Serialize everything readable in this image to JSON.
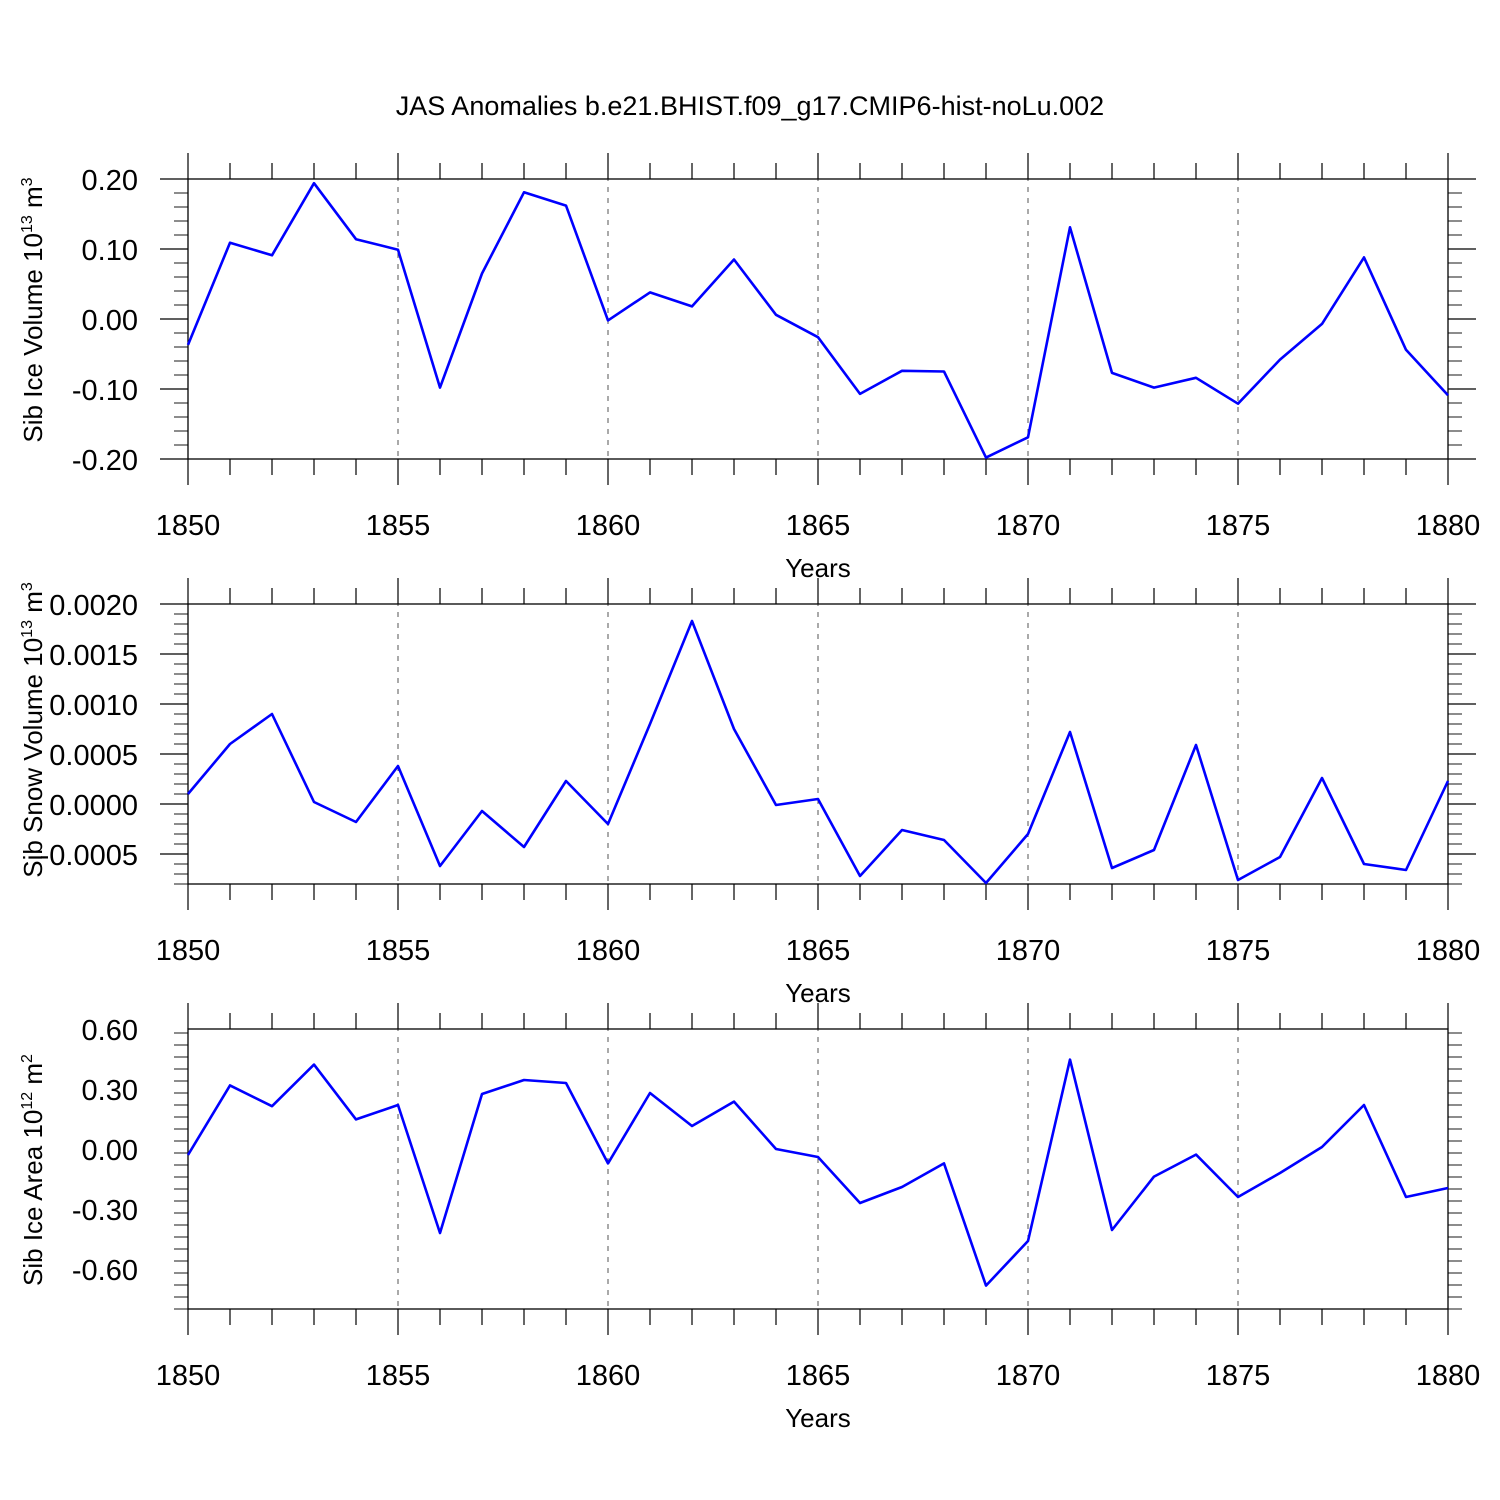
{
  "figure": {
    "title": "JAS Anomalies b.e21.BHIST.f09_g17.CMIP6-hist-noLu.002"
  },
  "chart_data": [
    {
      "type": "line",
      "ylabel": "Sib Ice Volume 10",
      "ylabel_sup": "13",
      "ylabel_unit": " m",
      "ylabel_unit_sup": "3",
      "xlabel": "Years",
      "xlim": [
        1850,
        1880
      ],
      "ylim": [
        -0.2,
        0.2
      ],
      "yticks": [
        "0.20",
        "0.10",
        "0.00",
        "-0.10",
        "-0.20"
      ],
      "ytick_values": [
        0.2,
        0.1,
        0.0,
        -0.1,
        -0.2
      ],
      "xticks": [
        "1850",
        "1855",
        "1860",
        "1865",
        "1870",
        "1875",
        "1880"
      ],
      "xtick_values": [
        1850,
        1855,
        1860,
        1865,
        1870,
        1875,
        1880
      ],
      "grid": "vertical dashed at labeled years",
      "color": "#0000ff",
      "x": [
        1850,
        1851,
        1852,
        1853,
        1854,
        1855,
        1856,
        1857,
        1858,
        1859,
        1860,
        1861,
        1862,
        1863,
        1864,
        1865,
        1866,
        1867,
        1868,
        1869,
        1870,
        1871,
        1872,
        1873,
        1874,
        1875,
        1876,
        1877,
        1878,
        1879,
        1880
      ],
      "values": [
        -0.037,
        0.109,
        0.091,
        0.194,
        0.114,
        0.099,
        -0.098,
        0.065,
        0.181,
        0.162,
        -0.002,
        0.038,
        0.018,
        0.085,
        0.006,
        -0.026,
        -0.107,
        -0.074,
        -0.075,
        -0.198,
        -0.169,
        0.131,
        -0.077,
        -0.098,
        -0.084,
        -0.121,
        -0.058,
        -0.007,
        0.088,
        -0.044,
        -0.109
      ]
    },
    {
      "type": "line",
      "ylabel": "Sib Snow Volume 10",
      "ylabel_sup": "13",
      "ylabel_unit": " m",
      "ylabel_unit_sup": "3",
      "xlabel": "Years",
      "xlim": [
        1850,
        1880
      ],
      "ylim": [
        -0.0008,
        0.002
      ],
      "yticks": [
        "0.0020",
        "0.0015",
        "0.0010",
        "0.0005",
        "0.0000",
        "-0.0005"
      ],
      "ytick_values": [
        0.002,
        0.0015,
        0.001,
        0.0005,
        0.0,
        -0.0005
      ],
      "xticks": [
        "1850",
        "1855",
        "1860",
        "1865",
        "1870",
        "1875",
        "1880"
      ],
      "xtick_values": [
        1850,
        1855,
        1860,
        1865,
        1870,
        1875,
        1880
      ],
      "grid": "vertical dashed at labeled years",
      "color": "#0000ff",
      "x": [
        1850,
        1851,
        1852,
        1853,
        1854,
        1855,
        1856,
        1857,
        1858,
        1859,
        1860,
        1861,
        1862,
        1863,
        1864,
        1865,
        1866,
        1867,
        1868,
        1869,
        1870,
        1871,
        1872,
        1873,
        1874,
        1875,
        1876,
        1877,
        1878,
        1879,
        1880
      ],
      "values": [
        0.0001,
        0.0006,
        0.0009,
        2e-05,
        -0.00018,
        0.00038,
        -0.00062,
        -7e-05,
        -0.00043,
        0.00023,
        -0.0002,
        0.0008,
        0.00183,
        0.00075,
        -1e-05,
        5e-05,
        -0.00072,
        -0.00026,
        -0.00036,
        -0.00079,
        -0.0003,
        0.00072,
        -0.00064,
        -0.00046,
        0.00059,
        -0.00076,
        -0.00053,
        0.00026,
        -0.0006,
        -0.00066,
        0.00023
      ]
    },
    {
      "type": "line",
      "ylabel": "Sib Ice Area 10",
      "ylabel_sup": "12",
      "ylabel_unit": " m",
      "ylabel_unit_sup": "2",
      "xlabel": "Years",
      "xlim": [
        1850,
        1880
      ],
      "ylim": [
        -0.8,
        0.6
      ],
      "yticks": [
        "0.60",
        "0.30",
        "0.00",
        "-0.30",
        "-0.60"
      ],
      "ytick_values": [
        0.6,
        0.3,
        0.0,
        -0.3,
        -0.6
      ],
      "xticks": [
        "1850",
        "1855",
        "1860",
        "1865",
        "1870",
        "1875",
        "1880"
      ],
      "xtick_values": [
        1850,
        1855,
        1860,
        1865,
        1870,
        1875,
        1880
      ],
      "grid": "vertical dashed at labeled years",
      "color": "#0000ff",
      "x": [
        1850,
        1851,
        1852,
        1853,
        1854,
        1855,
        1856,
        1857,
        1858,
        1859,
        1860,
        1861,
        1862,
        1863,
        1864,
        1865,
        1866,
        1867,
        1868,
        1869,
        1870,
        1871,
        1872,
        1873,
        1874,
        1875,
        1876,
        1877,
        1878,
        1879,
        1880
      ],
      "values": [
        -0.03,
        0.318,
        0.214,
        0.422,
        0.148,
        0.22,
        -0.42,
        0.275,
        0.345,
        0.33,
        -0.072,
        0.28,
        0.115,
        0.237,
        0.0,
        -0.04,
        -0.27,
        -0.19,
        -0.072,
        -0.683,
        -0.46,
        0.447,
        -0.405,
        -0.138,
        -0.028,
        -0.24,
        -0.12,
        0.01,
        0.22,
        -0.24,
        -0.195
      ]
    }
  ]
}
